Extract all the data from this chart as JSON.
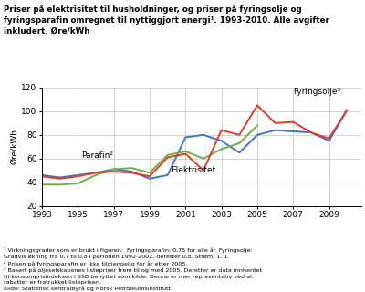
{
  "title": "Priser på elektrisitet til husholdninger, og priser på fyringsolje og\nfyringsparafin omregnet til nyttiggjort energi¹. 1993-2010. Alle avgifter\ninkludert. Øre/kWh",
  "ylabel": "Øre/kWh",
  "ylim": [
    20,
    120
  ],
  "yticks": [
    20,
    40,
    60,
    80,
    100,
    120
  ],
  "xticks": [
    1993,
    1995,
    1997,
    1999,
    2001,
    2003,
    2005,
    2007,
    2009
  ],
  "xlim": [
    1993,
    2010.8
  ],
  "footnotes": "¹ Virkningsgrader som er brukt i figuren:  Fyringsparafin: 0,75 for alle år. Fyringsolje:\nGradvis økning fra 0,7 til 0,8 i perioden 1992-2002, deretter 0,8. Strøm: 1. 1.\n² Prisen på fyringsparafin er ikke tilgjengelig for år etter 2005.\n³ Basert på oljeselskapenes listepriser frem til og med 2005. Deretter er data innhentet\ntil konsumprisindeksen i SSB benyttet som kilde. Denne er mer representativ ved at\nrabatter er fratrukket listeprisen.\nKilde: Statistisk sentralbyrå og Norsk Petroleumsinstitutt.",
  "years_elektrisitet": [
    1993,
    1994,
    1995,
    1996,
    1997,
    1998,
    1999,
    2000,
    2001,
    2002,
    2003,
    2004,
    2005,
    2006,
    2007,
    2008,
    2009,
    2010
  ],
  "elektrisitet": [
    46,
    44,
    46,
    48,
    51,
    49,
    43,
    46,
    78,
    80,
    75,
    65,
    80,
    84,
    83,
    82,
    75,
    101
  ],
  "years_parafin": [
    1993,
    1994,
    1995,
    1996,
    1997,
    1998,
    1999,
    2000,
    2001,
    2002,
    2003,
    2004,
    2005
  ],
  "parafin": [
    38,
    38,
    39,
    46,
    51,
    52,
    48,
    63,
    66,
    60,
    68,
    73,
    88
  ],
  "years_fyringsolje": [
    1993,
    1994,
    1995,
    1996,
    1997,
    1998,
    1999,
    2000,
    2001,
    2002,
    2003,
    2004,
    2005,
    2006,
    2007,
    2008,
    2009,
    2010
  ],
  "fyringsolje": [
    45,
    43,
    45,
    48,
    49,
    48,
    45,
    61,
    64,
    50,
    84,
    80,
    105,
    90,
    91,
    82,
    77,
    101
  ],
  "color_elektrisitet": "#4472c4",
  "color_parafin": "#70ad47",
  "color_fyringsolje": "#e03c2c",
  "ann_parafin_x": 1995.2,
  "ann_parafin_y": 59,
  "ann_elektrisitet_x": 2000.2,
  "ann_elektrisitet_y": 47,
  "ann_fyringsolje_x": 2007.0,
  "ann_fyringsolje_y": 113,
  "label_parafin": "Parafin²",
  "label_elektrisitet": "Elektrisitet",
  "label_fyringsolje": "Fyringsolje³",
  "grid_color": "#c0c0c0",
  "bg_color": "#ffffff"
}
